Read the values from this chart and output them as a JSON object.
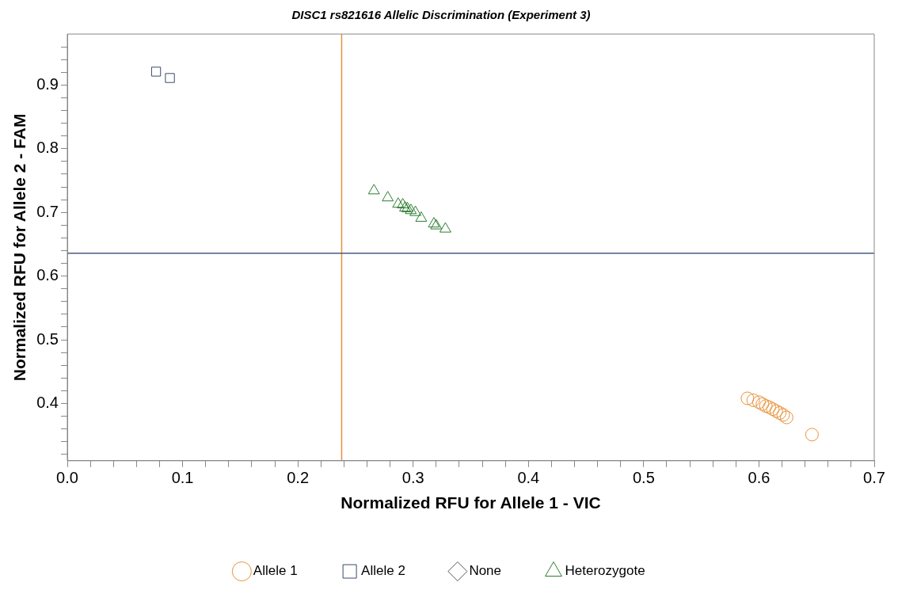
{
  "chart_data": {
    "type": "scatter",
    "title": "DISC1 rs821616 Allelic Discrimination (Experiment 3)",
    "xlabel": "Normalized RFU for Allele 1 - VIC",
    "ylabel": "Normalized RFU for Allele 2 - FAM",
    "xlim": [
      0,
      0.7
    ],
    "ylim": [
      0.31,
      0.98
    ],
    "xticks": [
      {
        "value": 0,
        "label": "0.0"
      },
      {
        "value": 0.02,
        "label": null
      },
      {
        "value": 0.04,
        "label": null
      },
      {
        "value": 0.06,
        "label": null
      },
      {
        "value": 0.08,
        "label": null
      },
      0.1,
      {
        "value": 0.12,
        "label": null
      },
      {
        "value": 0.14,
        "label": null
      },
      {
        "value": 0.16,
        "label": null
      },
      {
        "value": 0.18,
        "label": null
      },
      0.2,
      {
        "value": 0.22,
        "label": null
      },
      {
        "value": 0.24,
        "label": null
      },
      {
        "value": 0.26,
        "label": null
      },
      {
        "value": 0.28,
        "label": null
      },
      0.3,
      {
        "value": 0.32,
        "label": null
      },
      {
        "value": 0.34,
        "label": null
      },
      {
        "value": 0.36,
        "label": null
      },
      {
        "value": 0.38,
        "label": null
      },
      0.4,
      {
        "value": 0.42,
        "label": null
      },
      {
        "value": 0.44,
        "label": null
      },
      {
        "value": 0.46,
        "label": null
      },
      {
        "value": 0.48,
        "label": null
      },
      0.5,
      {
        "value": 0.52,
        "label": null
      },
      {
        "value": 0.54,
        "label": null
      },
      {
        "value": 0.56,
        "label": null
      },
      {
        "value": 0.58,
        "label": null
      },
      0.6,
      {
        "value": 0.62,
        "label": null
      },
      {
        "value": 0.64,
        "label": null
      },
      {
        "value": 0.66,
        "label": null
      },
      {
        "value": 0.68,
        "label": null
      },
      0.7
    ],
    "yticks": [
      {
        "value": 0.32,
        "label": null
      },
      {
        "value": 0.34,
        "label": null
      },
      {
        "value": 0.36,
        "label": null
      },
      {
        "value": 0.38,
        "label": null
      },
      0.4,
      {
        "value": 0.42,
        "label": null
      },
      {
        "value": 0.44,
        "label": null
      },
      {
        "value": 0.46,
        "label": null
      },
      {
        "value": 0.48,
        "label": null
      },
      0.5,
      {
        "value": 0.52,
        "label": null
      },
      {
        "value": 0.54,
        "label": null
      },
      {
        "value": 0.56,
        "label": null
      },
      {
        "value": 0.58,
        "label": null
      },
      0.6,
      {
        "value": 0.62,
        "label": null
      },
      {
        "value": 0.64,
        "label": null
      },
      {
        "value": 0.66,
        "label": null
      },
      {
        "value": 0.68,
        "label": null
      },
      0.7,
      {
        "value": 0.72,
        "label": null
      },
      {
        "value": 0.74,
        "label": null
      },
      {
        "value": 0.76,
        "label": null
      },
      {
        "value": 0.78,
        "label": null
      },
      0.8,
      {
        "value": 0.82,
        "label": null
      },
      {
        "value": 0.84,
        "label": null
      },
      {
        "value": 0.86,
        "label": null
      },
      {
        "value": 0.88,
        "label": null
      },
      0.9,
      {
        "value": 0.92,
        "label": null
      },
      {
        "value": 0.94,
        "label": null
      },
      {
        "value": 0.96,
        "label": null
      }
    ],
    "grid": false,
    "legend": "bottom",
    "ref_lines": [
      {
        "axis": "x",
        "value": 0.238,
        "color": "#e8923a"
      },
      {
        "axis": "y",
        "value": 0.636,
        "color": "#4a5a80"
      }
    ],
    "series": [
      {
        "name": "Allele 1",
        "color": "#e8923a",
        "marker": "circle",
        "x": [
          0.59,
          0.595,
          0.6,
          0.603,
          0.606,
          0.609,
          0.612,
          0.615,
          0.618,
          0.621,
          0.624,
          0.646
        ],
        "values": [
          0.408,
          0.405,
          0.402,
          0.399,
          0.396,
          0.394,
          0.391,
          0.388,
          0.385,
          0.382,
          0.378,
          0.351
        ]
      },
      {
        "name": "Allele 2",
        "color": "#3a4a6a",
        "marker": "square",
        "x": [
          0.077,
          0.089
        ],
        "values": [
          0.921,
          0.911
        ]
      },
      {
        "name": "None",
        "color": "#555555",
        "marker": "diamond"
      },
      {
        "name": "Heterozygote",
        "color": "#2e7d32",
        "marker": "triangle",
        "x": [
          0.266,
          0.278,
          0.287,
          0.291,
          0.293,
          0.295,
          0.298,
          0.302,
          0.307,
          0.318,
          0.32,
          0.328
        ],
        "values": [
          0.734,
          0.723,
          0.713,
          0.712,
          0.707,
          0.706,
          0.703,
          0.7,
          0.691,
          0.682,
          0.679,
          0.674
        ]
      }
    ]
  }
}
